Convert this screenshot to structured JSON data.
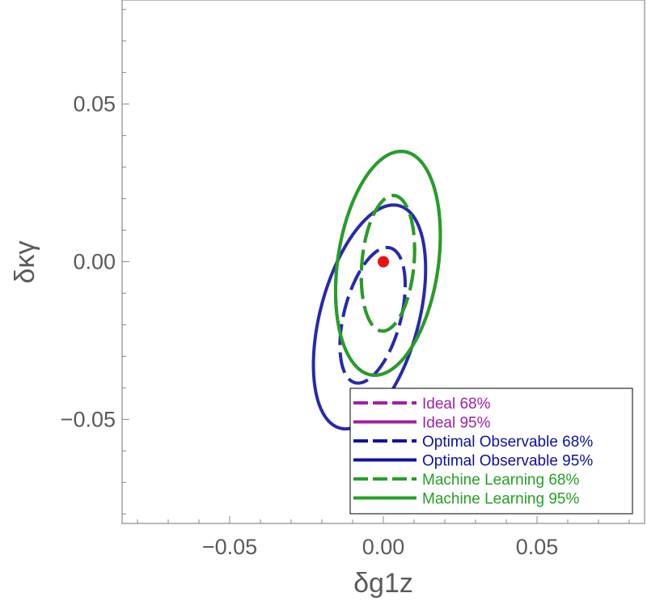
{
  "chart_data": {
    "type": "line",
    "title": "",
    "xlabel": "δg1z",
    "ylabel": "δκγ",
    "xlim": [
      -0.085,
      0.085
    ],
    "ylim": [
      -0.083,
      0.083
    ],
    "x_ticks": [
      -0.05,
      0.0,
      0.05
    ],
    "x_tick_labels": [
      "−0.05",
      "0.00",
      "0.05"
    ],
    "y_ticks": [
      -0.05,
      0.0,
      0.05
    ],
    "y_tick_labels": [
      "−0.05",
      "0.00",
      "0.05"
    ],
    "grid": false,
    "legend_position": "bottom-right",
    "series": [
      {
        "name": "Ideal 68%",
        "color": "#a020a8",
        "dashed": true,
        "center": [
          0.0015,
          -0.0005
        ],
        "half_width": 0.0085,
        "half_height": 0.0215,
        "tilt": -0.08
      },
      {
        "name": "Ideal 95%",
        "color": "#a020a8",
        "dashed": false,
        "center": [
          0.0015,
          -0.0005
        ],
        "half_width": 0.0165,
        "half_height": 0.0355,
        "tilt": -0.12
      },
      {
        "name": "Optimal Observable 68%",
        "color": "#2828b0",
        "dashed": true,
        "center": [
          -0.0035,
          -0.017
        ],
        "half_width": 0.0095,
        "half_height": 0.0215,
        "tilt": -0.22
      },
      {
        "name": "Optimal Observable 95%",
        "color": "#2828b0",
        "dashed": false,
        "center": [
          -0.0045,
          -0.0175
        ],
        "half_width": 0.0165,
        "half_height": 0.0355,
        "tilt": -0.22
      },
      {
        "name": "Machine Learning 68%",
        "color": "#24a024",
        "dashed": true,
        "center": [
          0.0015,
          -0.0005
        ],
        "half_width": 0.0085,
        "half_height": 0.0215,
        "tilt": -0.08
      },
      {
        "name": "Machine Learning 95%",
        "color": "#24a024",
        "dashed": false,
        "center": [
          0.0015,
          -0.0005
        ],
        "half_width": 0.0165,
        "half_height": 0.0355,
        "tilt": -0.12
      }
    ],
    "points": [
      {
        "x": 0.0,
        "y": 0.0,
        "color": "#ee1111"
      }
    ]
  }
}
